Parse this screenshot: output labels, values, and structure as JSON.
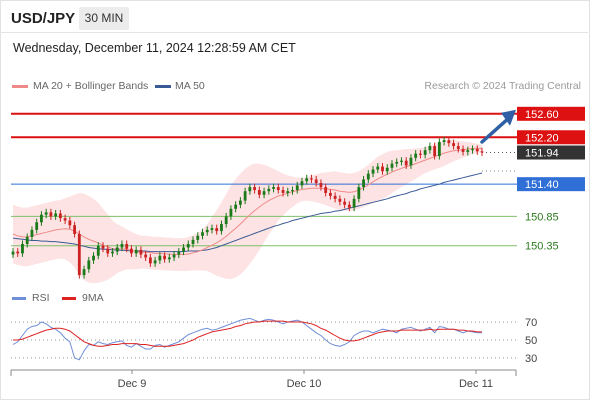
{
  "header": {
    "symbol": "USD/JPY",
    "timeframe": "30 MIN",
    "datetime": "Wednesday, December 11, 2024 12:28:59 AM CET"
  },
  "legend": {
    "ma20": "MA 20 + Bollinger Bands",
    "ma50": "MA 50",
    "credit": "Research © 2024 Trading Central"
  },
  "rsi_legend": {
    "rsi": "RSI",
    "ma": "9MA"
  },
  "colors": {
    "up": "#1a7a1a",
    "down": "#cc2222",
    "ma20": "#f08a8a",
    "bands": "#fde3e3",
    "ma50": "#3a5a96",
    "resistance": "#dd1111",
    "current": "#333333",
    "pivot": "#2f6fd6",
    "support": "#7fbf6a",
    "arrow": "#2f5fa5",
    "rsi": "#6f8fd8",
    "rsi_ma": "#dd2222"
  },
  "chart_data": [
    {
      "type": "candlestick",
      "x_ticks": [
        "Dec 9",
        "Dec 10",
        "Dec 11"
      ],
      "ylim": [
        149.8,
        152.75
      ],
      "current_price": "151.94",
      "levels": [
        {
          "label": "152.60",
          "value": 152.6,
          "kind": "resistance"
        },
        {
          "label": "152.20",
          "value": 152.2,
          "kind": "resistance"
        },
        {
          "label": "151.40",
          "value": 151.4,
          "kind": "pivot"
        },
        {
          "label": "150.85",
          "value": 150.85,
          "kind": "support"
        },
        {
          "label": "150.35",
          "value": 150.35,
          "kind": "support"
        }
      ],
      "close": [
        150.25,
        150.22,
        150.38,
        150.5,
        150.62,
        150.75,
        150.88,
        150.92,
        150.85,
        150.9,
        150.82,
        150.78,
        150.7,
        150.55,
        149.85,
        149.95,
        150.1,
        150.18,
        150.35,
        150.3,
        150.22,
        150.25,
        150.32,
        150.38,
        150.3,
        150.22,
        150.28,
        150.2,
        150.15,
        150.05,
        150.1,
        150.18,
        150.12,
        150.15,
        150.2,
        150.25,
        150.32,
        150.38,
        150.45,
        150.52,
        150.58,
        150.62,
        150.65,
        150.6,
        150.72,
        150.85,
        150.98,
        151.05,
        151.12,
        151.28,
        151.35,
        151.3,
        151.22,
        151.28,
        151.32,
        151.35,
        151.3,
        151.25,
        151.28,
        151.3,
        151.38,
        151.45,
        151.5,
        151.48,
        151.42,
        151.35,
        151.25,
        151.2,
        151.15,
        151.1,
        151.05,
        151.0,
        151.15,
        151.35,
        151.48,
        151.58,
        151.65,
        151.7,
        151.62,
        151.68,
        151.75,
        151.78,
        151.8,
        151.72,
        151.85,
        151.92,
        151.9,
        151.98,
        152.05,
        151.88,
        152.12,
        152.15,
        152.1,
        152.05,
        152.0,
        151.95,
        151.98,
        152.0,
        151.96,
        151.94
      ],
      "ma50": [
        150.48,
        150.47,
        150.46,
        150.45,
        150.44,
        150.44,
        150.43,
        150.43,
        150.42,
        150.42,
        150.41,
        150.4,
        150.39,
        150.38,
        150.36,
        150.34,
        150.32,
        150.31,
        150.3,
        150.29,
        150.29,
        150.28,
        150.28,
        150.27,
        150.27,
        150.26,
        150.26,
        150.26,
        150.26,
        150.25,
        150.25,
        150.25,
        150.25,
        150.25,
        150.25,
        150.25,
        150.25,
        150.26,
        150.26,
        150.26,
        150.27,
        150.28,
        150.3,
        150.32,
        150.35,
        150.38,
        150.41,
        150.44,
        150.47,
        150.5,
        150.53,
        150.56,
        150.59,
        150.62,
        150.65,
        150.68,
        150.7,
        150.73,
        150.75,
        150.78,
        150.8,
        150.82,
        150.84,
        150.86,
        150.88,
        150.9,
        150.91,
        150.92,
        150.94,
        150.95,
        150.97,
        150.99,
        151.01,
        151.03,
        151.05,
        151.07,
        151.09,
        151.11,
        151.13,
        151.15,
        151.18,
        151.2,
        151.22,
        151.24,
        151.27,
        151.29,
        151.32,
        151.34,
        151.36,
        151.38,
        151.4,
        151.43,
        151.45,
        151.47,
        151.49,
        151.51,
        151.53,
        151.55,
        151.57,
        151.59
      ],
      "ma20": [
        150.55,
        150.52,
        150.5,
        150.5,
        150.52,
        150.54,
        150.56,
        150.58,
        150.6,
        150.62,
        150.63,
        150.64,
        150.63,
        150.6,
        150.55,
        150.5,
        150.46,
        150.43,
        150.4,
        150.36,
        150.33,
        150.3,
        150.3,
        150.3,
        150.29,
        150.27,
        150.25,
        150.24,
        150.24,
        150.23,
        150.22,
        150.22,
        150.21,
        150.21,
        150.2,
        150.2,
        150.2,
        150.21,
        150.23,
        150.25,
        150.28,
        150.32,
        150.36,
        150.4,
        150.45,
        150.51,
        150.58,
        150.65,
        150.72,
        150.8,
        150.88,
        150.95,
        151.01,
        151.07,
        151.12,
        151.16,
        151.2,
        151.22,
        151.25,
        151.27,
        151.29,
        151.31,
        151.32,
        151.33,
        151.33,
        151.33,
        151.32,
        151.31,
        151.3,
        151.28,
        151.27,
        151.26,
        151.27,
        151.3,
        151.34,
        151.39,
        151.44,
        151.49,
        151.53,
        151.57,
        151.61,
        151.64,
        151.67,
        151.7,
        151.72,
        151.75,
        151.78,
        151.81,
        151.84,
        151.87,
        151.9,
        151.93,
        151.95,
        151.97,
        151.98,
        151.99,
        152.0,
        152.01,
        152.01,
        152.01
      ],
      "bb_width": [
        0.5,
        0.5,
        0.5,
        0.5,
        0.5,
        0.5,
        0.5,
        0.5,
        0.5,
        0.5,
        0.5,
        0.52,
        0.56,
        0.62,
        0.7,
        0.74,
        0.74,
        0.72,
        0.68,
        0.62,
        0.56,
        0.48,
        0.42,
        0.38,
        0.34,
        0.32,
        0.3,
        0.28,
        0.28,
        0.28,
        0.28,
        0.28,
        0.28,
        0.28,
        0.28,
        0.28,
        0.28,
        0.29,
        0.3,
        0.32,
        0.35,
        0.4,
        0.48,
        0.56,
        0.64,
        0.72,
        0.8,
        0.84,
        0.86,
        0.86,
        0.84,
        0.8,
        0.74,
        0.66,
        0.58,
        0.5,
        0.42,
        0.36,
        0.3,
        0.26,
        0.22,
        0.2,
        0.2,
        0.22,
        0.24,
        0.26,
        0.28,
        0.3,
        0.32,
        0.32,
        0.32,
        0.32,
        0.32,
        0.32,
        0.33,
        0.34,
        0.36,
        0.38,
        0.38,
        0.38,
        0.36,
        0.34,
        0.32,
        0.3,
        0.28,
        0.26,
        0.24,
        0.22,
        0.22,
        0.22,
        0.22,
        0.22,
        0.2,
        0.18,
        0.16,
        0.14,
        0.12,
        0.1,
        0.08,
        0.06
      ],
      "arrow_target": 152.6
    },
    {
      "type": "line",
      "title": "RSI",
      "y_ticks": [
        70,
        50,
        30
      ],
      "ylim": [
        20,
        80
      ],
      "series": [
        {
          "name": "RSI",
          "values": [
            45,
            48,
            55,
            62,
            65,
            66,
            70,
            68,
            64,
            62,
            58,
            52,
            48,
            30,
            28,
            38,
            45,
            44,
            48,
            46,
            45,
            47,
            48,
            49,
            44,
            42,
            46,
            43,
            40,
            40,
            44,
            45,
            42,
            44,
            46,
            48,
            52,
            56,
            58,
            60,
            62,
            63,
            61,
            62,
            64,
            66,
            68,
            70,
            72,
            73,
            74,
            72,
            70,
            72,
            73,
            72,
            70,
            68,
            70,
            71,
            72,
            70,
            66,
            62,
            58,
            55,
            50,
            46,
            44,
            43,
            45,
            48,
            55,
            58,
            60,
            60,
            58,
            60,
            62,
            61,
            60,
            58,
            62,
            63,
            64,
            62,
            60,
            62,
            64,
            58,
            65,
            64,
            62,
            62,
            60,
            58,
            60,
            59,
            58,
            58
          ]
        },
        {
          "name": "9MA",
          "values": [
            50,
            50,
            51,
            53,
            55,
            57,
            59,
            61,
            62,
            63,
            63,
            62,
            60,
            56,
            52,
            48,
            46,
            44,
            43,
            43,
            44,
            45,
            45,
            46,
            46,
            46,
            46,
            45,
            45,
            44,
            43,
            43,
            43,
            43,
            44,
            45,
            46,
            48,
            50,
            53,
            55,
            57,
            59,
            60,
            61,
            62,
            63,
            65,
            66,
            68,
            69,
            70,
            70,
            71,
            71,
            71,
            71,
            71,
            70,
            70,
            70,
            70,
            69,
            68,
            66,
            63,
            61,
            58,
            55,
            52,
            50,
            49,
            49,
            50,
            52,
            54,
            56,
            58,
            59,
            60,
            60,
            60,
            61,
            61,
            61,
            61,
            61,
            61,
            62,
            61,
            62,
            62,
            62,
            62,
            61,
            61,
            60,
            60,
            59,
            59
          ]
        }
      ]
    }
  ]
}
